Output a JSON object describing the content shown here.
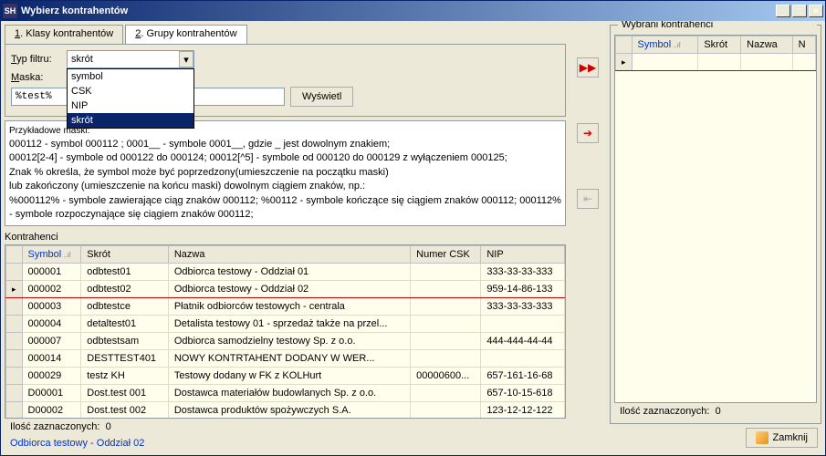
{
  "window": {
    "title": "Wybierz kontrahentów",
    "icon_text": "SH"
  },
  "tabs": [
    {
      "hotkey": "1",
      "label": ". Klasy kontrahentów"
    },
    {
      "hotkey": "2",
      "label": ". Grupy kontrahentów"
    }
  ],
  "filter": {
    "type_label": "Typ filtru:",
    "type_hotkey": "T",
    "type_value": "skrót",
    "options": [
      "symbol",
      "CSK",
      "NIP",
      "skrót"
    ],
    "mask_label": "Maska:",
    "mask_hotkey": "M",
    "mask_value": "%test%",
    "show_button": "Wyświetl",
    "show_hotkey": "W"
  },
  "help": {
    "title": "Przykładowe maski:",
    "lines": [
      "000112 - symbol 000112 ; 0001__ - symbole 0001__, gdzie _ jest dowolnym znakiem;",
      "00012[2-4] - symbole od 000122 do 000124;  00012[^5] - symbole od 000120 do 000129 z wyłączeniem 000125;",
      "Znak % określa, że symbol może być poprzedzony(umieszczenie na początku maski)",
      "lub zakończony (umieszczenie na końcu maski) dowolnym ciągiem znaków, np.:",
      "%000112% - symbole zawierające ciąg znaków 000112; %00112 - symbole kończące się ciągiem znaków 000112; 000112% - symbole rozpoczynające się ciągiem znaków 000112;"
    ]
  },
  "grid": {
    "label": "Kontrahenci",
    "columns": [
      "Symbol",
      "Skrót",
      "Nazwa",
      "Numer CSK",
      "NIP"
    ],
    "sorted_column": 0,
    "selected_row": 1,
    "rows": [
      [
        "000001",
        "odbtest01",
        "Odbiorca testowy - Oddział 01",
        "",
        "333-33-33-333"
      ],
      [
        "000002",
        "odbtest02",
        "Odbiorca testowy - Oddział 02",
        "",
        "959-14-86-133"
      ],
      [
        "000003",
        "odbtestce",
        "Płatnik odbiorców testowych - centrala",
        "",
        "333-33-33-333"
      ],
      [
        "000004",
        "detaltest01",
        "Detalista testowy 01 - sprzedaż także na przel...",
        "",
        ""
      ],
      [
        "000007",
        "odbtestsam",
        "Odbiorca samodzielny testowy Sp. z o.o.",
        "",
        "444-444-44-44"
      ],
      [
        "000014",
        "DESTTEST401",
        "NOWY KONTRTAHENT DODANY W WER...",
        "",
        ""
      ],
      [
        "000029",
        "testz KH",
        "Testowy dodany w FK z KOLHurt",
        "00000600...",
        "657-161-16-68"
      ],
      [
        "D00001",
        "Dost.test 001",
        "Dostawca materiałów budowlanych Sp. z o.o.",
        "",
        "657-10-15-618"
      ],
      [
        "D00002",
        "Dost.test 002",
        "Dostawca produktów spożywczych S.A.",
        "",
        "123-12-12-122"
      ]
    ]
  },
  "left_status": {
    "count_label": "Ilość zaznaczonych:",
    "count": "0",
    "current": "Odbiorca testowy - Oddział 02"
  },
  "selected_panel": {
    "title": "Wybrani kontrahenci",
    "columns": [
      "Symbol",
      "Skrót",
      "Nazwa",
      "N"
    ],
    "count_label": "Ilość zaznaczonych:",
    "count": "0"
  },
  "close_button": "Zamknij",
  "close_hotkey": "Z",
  "colors": {
    "titlebar_start": "#0a246a",
    "titlebar_end": "#a6caf0",
    "panel_bg": "#ece9d8",
    "grid_bg": "#fffeec",
    "selected_border": "#c00000",
    "link": "#0033cc"
  }
}
